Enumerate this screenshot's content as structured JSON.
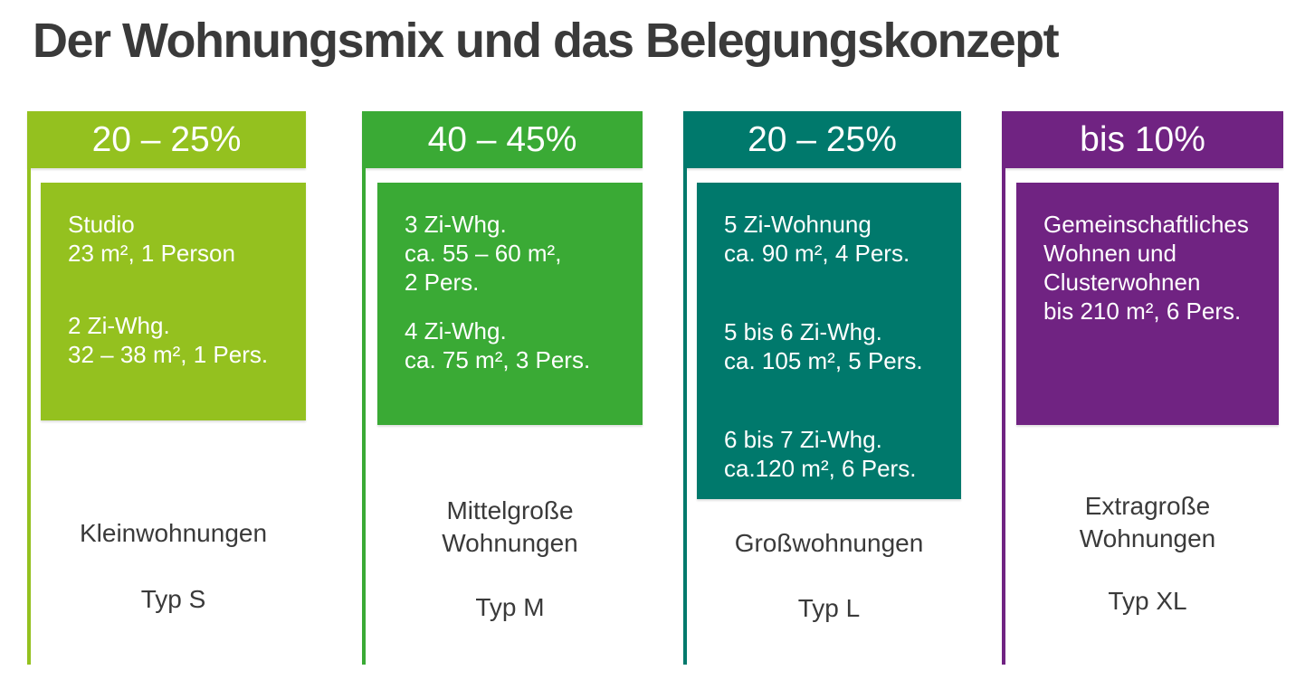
{
  "slide": {
    "title": "Der Wohnungsmix und das Belegungskonzept"
  },
  "colors": {
    "typ_s_green": "#94C11F",
    "typ_m_green": "#3AAA35",
    "typ_l_teal": "#00796C",
    "typ_xl_purple": "#702382",
    "text_dark": "#3A3A3A",
    "text_on_color": "#FFFFFF",
    "background": "#FFFFFF"
  },
  "columns": [
    {
      "share": "20 – 25%",
      "color": "#94C11F",
      "box": {
        "paragraphs": [
          [
            "Studio",
            "23 m², 1 Person"
          ],
          [
            "2 Zi-Whg.",
            "32 – 38 m², 1 Pers."
          ]
        ]
      },
      "category": [
        "Kleinwohnungen"
      ],
      "type": "Typ S"
    },
    {
      "share": "40 – 45%",
      "color": "#3AAA35",
      "box": {
        "paragraphs": [
          [
            "3 Zi-Whg.",
            "ca. 55 – 60 m²,",
            "2 Pers."
          ],
          [
            "4 Zi-Whg.",
            "ca. 75 m², 3 Pers."
          ]
        ]
      },
      "category": [
        "Mittelgroße",
        "Wohnungen"
      ],
      "type": "Typ M"
    },
    {
      "share": "20 – 25%",
      "color": "#00796C",
      "box": {
        "paragraphs": [
          [
            "5 Zi-Wohnung",
            "ca. 90 m², 4 Pers."
          ],
          [
            "5 bis 6 Zi-Whg.",
            "ca. 105 m², 5 Pers."
          ],
          [
            "6 bis 7 Zi-Whg.",
            "ca.120 m², 6 Pers."
          ]
        ]
      },
      "category": [
        "Großwohnungen"
      ],
      "type": "Typ L"
    },
    {
      "share": "bis 10%",
      "color": "#702382",
      "box": {
        "paragraphs": [
          [
            "Gemeinschaftliches",
            "Wohnen und",
            "Clusterwohnen",
            "bis 210 m², 6 Pers."
          ]
        ]
      },
      "category": [
        "Extragroße",
        "Wohnungen"
      ],
      "type": "Typ XL"
    }
  ]
}
